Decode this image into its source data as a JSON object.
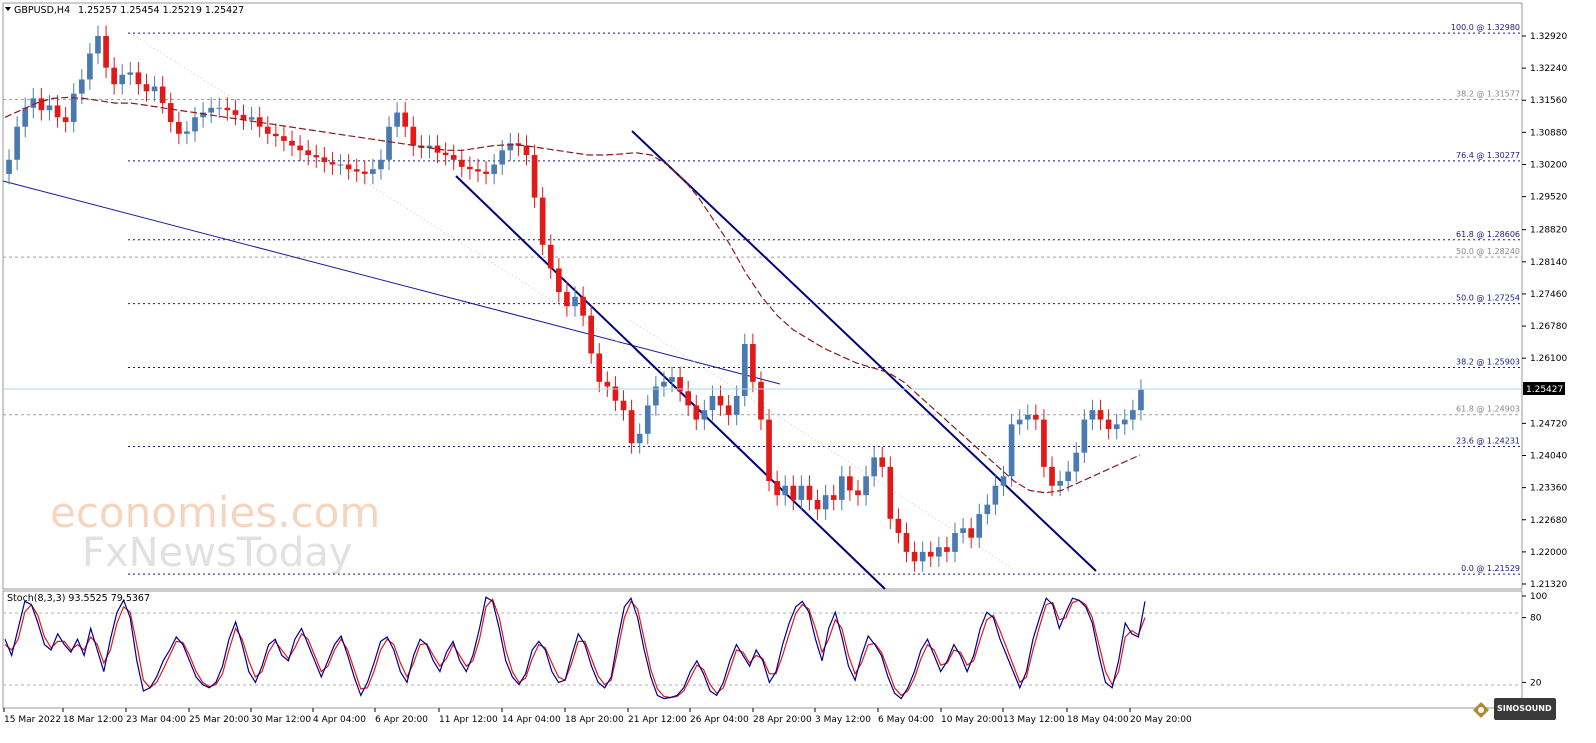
{
  "header": {
    "symbol": "GBPUSD,H4",
    "ohlc": "1.25257 1.25454 1.25219 1.25427",
    "stoch_label": "Stoch(8,3,3) 93.5525 79.5367"
  },
  "watermark": {
    "line1": "economies.com",
    "line2": "FxNewsToday"
  },
  "logo_text": "SINOSOUND",
  "current_price": "1.25427",
  "price_axis_labels": [
    "1.32920",
    "1.32240",
    "1.31560",
    "1.30880",
    "1.30200",
    "1.29520",
    "1.28820",
    "1.28140",
    "1.27460",
    "1.26780",
    "1.26100",
    "1.25427",
    "1.24720",
    "1.24040",
    "1.23360",
    "1.22680",
    "1.22000",
    "1.21320"
  ],
  "stoch_axis_labels": [
    "100",
    "80",
    "20"
  ],
  "time_axis_labels": [
    "15 Mar 2022",
    "18 Mar 12:00",
    "23 Mar 04:00",
    "25 Mar 20:00",
    "30 Mar 12:00",
    "4 Apr 04:00",
    "6 Apr 20:00",
    "11 Apr 12:00",
    "14 Apr 04:00",
    "18 Apr 20:00",
    "21 Apr 12:00",
    "26 Apr 04:00",
    "28 Apr 20:00",
    "3 May 12:00",
    "6 May 04:00",
    "10 May 20:00",
    "13 May 12:00",
    "18 May 04:00",
    "20 May 20:00"
  ],
  "fib_labels": [
    {
      "text": "100.0 @ 1.32980",
      "price": 1.3298,
      "style": "blue"
    },
    {
      "text": "38.2 @ 1.31577",
      "price": 1.31577,
      "style": "gray"
    },
    {
      "text": "76.4 @ 1.30277",
      "price": 1.30277,
      "style": "blue"
    },
    {
      "text": "61.8 @ 1.28606",
      "price": 1.28606,
      "style": "blue"
    },
    {
      "text": "50.0 @ 1.28240",
      "price": 1.2824,
      "style": "gray"
    },
    {
      "text": "50.0 @ 1.27254",
      "price": 1.27254,
      "style": "blue"
    },
    {
      "text": "38.2 @ 1.25903",
      "price": 1.25903,
      "style": "blue"
    },
    {
      "text": "61.8 @ 1.24903",
      "price": 1.24903,
      "style": "gray"
    },
    {
      "text": "23.6 @ 1.24231",
      "price": 1.24231,
      "style": "blue"
    },
    {
      "text": "0.0 @ 1.21529",
      "price": 1.21529,
      "style": "blue"
    }
  ],
  "colors": {
    "bull": "#4a7ab0",
    "bear": "#e11919",
    "ma": "#8b1a1a",
    "trend": "#000080",
    "stoch_main": "#00008b",
    "stoch_signal": "#e11919"
  },
  "chart_data": {
    "type": "candlestick",
    "symbol": "GBPUSD",
    "timeframe": "H4",
    "ylim": [
      1.2132,
      1.3326
    ],
    "stoch_ylim": [
      0,
      100
    ],
    "stoch_levels": [
      80,
      20
    ],
    "price_closes": [
      1.303,
      1.31,
      1.314,
      1.316,
      1.3135,
      1.3145,
      1.312,
      1.311,
      1.317,
      1.32,
      1.3255,
      1.3292,
      1.3225,
      1.319,
      1.321,
      1.3215,
      1.319,
      1.3175,
      1.3185,
      1.315,
      1.311,
      1.3085,
      1.309,
      1.312,
      1.313,
      1.314,
      1.314,
      1.3135,
      1.3125,
      1.3115,
      1.312,
      1.31,
      1.3085,
      1.308,
      1.307,
      1.306,
      1.305,
      1.304,
      1.3035,
      1.3025,
      1.302,
      1.302,
      1.301,
      1.3005,
      1.3,
      1.301,
      1.303,
      1.31,
      1.313,
      1.31,
      1.306,
      1.3055,
      1.306,
      1.3045,
      1.304,
      1.303,
      1.3015,
      1.301,
      1.3005,
      1.3,
      1.302,
      1.305,
      1.3065,
      1.306,
      1.304,
      1.295,
      1.285,
      1.28,
      1.275,
      1.272,
      1.274,
      1.27,
      1.262,
      1.256,
      1.255,
      1.252,
      1.25,
      1.243,
      1.245,
      1.251,
      1.255,
      1.256,
      1.257,
      1.254,
      1.251,
      1.248,
      1.25,
      1.253,
      1.251,
      1.249,
      1.253,
      1.264,
      1.256,
      1.248,
      1.235,
      1.232,
      1.234,
      1.231,
      1.234,
      1.231,
      1.229,
      1.232,
      1.231,
      1.236,
      1.233,
      1.232,
      1.236,
      1.24,
      1.238,
      1.227,
      1.224,
      1.22,
      1.218,
      1.22,
      1.219,
      1.221,
      1.22,
      1.224,
      1.225,
      1.223,
      1.228,
      1.23,
      1.234,
      1.236,
      1.247,
      1.248,
      1.249,
      1.248,
      1.238,
      1.234,
      1.235,
      1.237,
      1.241,
      1.248,
      1.25,
      1.248,
      1.246,
      1.247,
      1.248,
      1.25,
      1.2543
    ],
    "ma_values": [
      1.312,
      1.3135,
      1.315,
      1.316,
      1.3162,
      1.316,
      1.3155,
      1.315,
      1.315,
      1.3145,
      1.314,
      1.3135,
      1.313,
      1.3125,
      1.312,
      1.3115,
      1.311,
      1.3105,
      1.31,
      1.3095,
      1.309,
      1.3085,
      1.308,
      1.3075,
      1.307,
      1.3065,
      1.306,
      1.3055,
      1.305,
      1.305,
      1.3055,
      1.306,
      1.3062,
      1.306,
      1.3055,
      1.305,
      1.3045,
      1.304,
      1.304,
      1.3042,
      1.3045,
      1.304,
      1.302,
      1.299,
      1.295,
      1.29,
      1.285,
      1.279,
      1.274,
      1.27,
      1.267,
      1.265,
      1.263,
      1.2615,
      1.26,
      1.259,
      1.258,
      1.256,
      1.253,
      1.25,
      1.247,
      1.244,
      1.241,
      1.238,
      1.235,
      1.233,
      1.2325,
      1.233,
      1.2345,
      1.236,
      1.2375,
      1.239,
      1.2405
    ],
    "stoch_main": [
      60,
      45,
      70,
      95,
      92,
      75,
      55,
      50,
      65,
      55,
      48,
      60,
      45,
      70,
      50,
      30,
      60,
      85,
      96,
      80,
      40,
      12,
      15,
      25,
      40,
      50,
      62,
      55,
      40,
      25,
      18,
      15,
      20,
      35,
      60,
      76,
      55,
      30,
      20,
      35,
      55,
      60,
      45,
      40,
      60,
      70,
      55,
      40,
      25,
      40,
      55,
      63,
      45,
      25,
      8,
      20,
      38,
      58,
      62,
      50,
      30,
      20,
      45,
      60,
      55,
      40,
      30,
      48,
      58,
      40,
      30,
      45,
      70,
      99,
      95,
      70,
      40,
      25,
      18,
      28,
      50,
      58,
      50,
      30,
      20,
      22,
      45,
      65,
      55,
      35,
      20,
      15,
      25,
      60,
      90,
      98,
      80,
      50,
      25,
      8,
      5,
      6,
      8,
      15,
      30,
      40,
      28,
      12,
      8,
      20,
      40,
      55,
      45,
      35,
      50,
      40,
      20,
      30,
      55,
      75,
      90,
      95,
      85,
      60,
      40,
      70,
      85,
      62,
      35,
      22,
      45,
      63,
      55,
      45,
      25,
      10,
      5,
      15,
      30,
      50,
      60,
      45,
      30,
      40,
      55,
      45,
      30,
      45,
      70,
      85,
      80,
      60,
      45,
      30,
      15,
      30,
      60,
      80,
      98,
      92,
      70,
      85,
      98,
      96,
      90,
      75,
      45,
      20,
      15,
      40,
      75,
      65,
      62,
      95
    ],
    "stoch_signal": [
      55,
      50,
      60,
      85,
      92,
      82,
      62,
      52,
      58,
      58,
      50,
      55,
      50,
      62,
      55,
      38,
      50,
      75,
      90,
      85,
      55,
      22,
      15,
      20,
      32,
      45,
      58,
      57,
      45,
      30,
      20,
      16,
      18,
      28,
      50,
      70,
      60,
      40,
      25,
      30,
      48,
      58,
      50,
      42,
      52,
      65,
      60,
      45,
      30,
      35,
      50,
      60,
      50,
      32,
      14,
      15,
      30,
      50,
      60,
      55,
      38,
      25,
      38,
      55,
      56,
      45,
      35,
      42,
      55,
      45,
      35,
      40,
      60,
      90,
      97,
      80,
      50,
      30,
      20,
      24,
      42,
      55,
      52,
      38,
      25,
      22,
      38,
      58,
      58,
      42,
      26,
      18,
      22,
      50,
      80,
      95,
      88,
      60,
      32,
      14,
      7,
      6,
      7,
      12,
      24,
      36,
      32,
      18,
      10,
      15,
      32,
      50,
      48,
      38,
      45,
      42,
      28,
      28,
      45,
      65,
      84,
      92,
      88,
      70,
      48,
      60,
      78,
      70,
      45,
      28,
      38,
      55,
      56,
      48,
      32,
      15,
      8,
      12,
      24,
      42,
      55,
      50,
      36,
      38,
      50,
      48,
      36,
      40,
      60,
      78,
      82,
      68,
      52,
      36,
      20,
      25,
      50,
      72,
      92,
      94,
      78,
      80,
      94,
      96,
      92,
      80,
      55,
      30,
      18,
      30,
      62,
      68,
      64,
      80
    ]
  }
}
